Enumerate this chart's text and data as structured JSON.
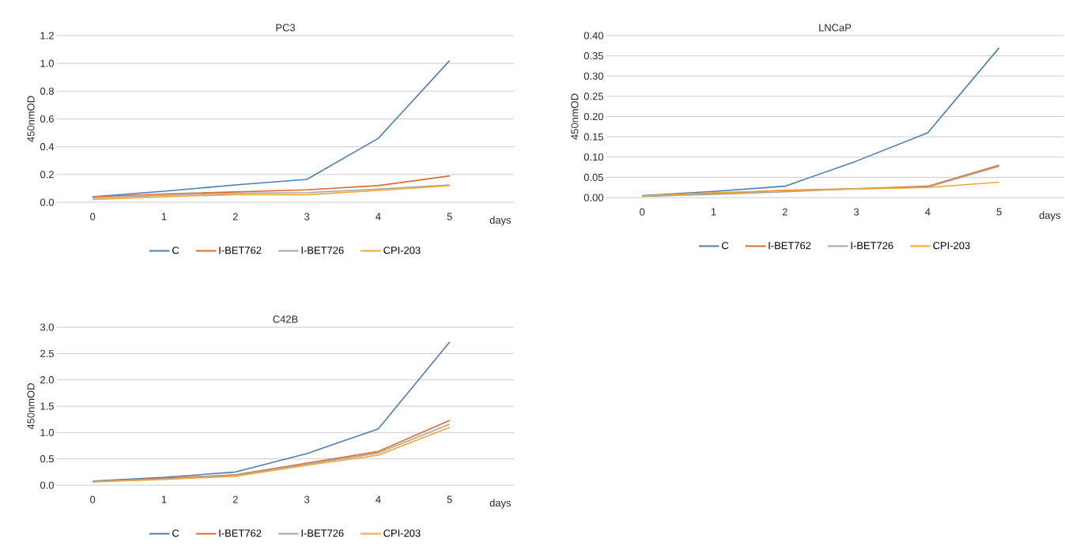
{
  "chart_data": [
    {
      "type": "line",
      "title": "PC3",
      "xlabel": "days",
      "ylabel": "450nmOD",
      "categories": [
        "0",
        "1",
        "2",
        "3",
        "4",
        "5"
      ],
      "series": [
        {
          "name": "C",
          "color": "#4a7fb5",
          "values": [
            0.04,
            0.08,
            0.125,
            0.165,
            0.46,
            1.02
          ]
        },
        {
          "name": "I-BET762",
          "color": "#e06a2c",
          "values": [
            0.04,
            0.06,
            0.075,
            0.09,
            0.12,
            0.19
          ]
        },
        {
          "name": "I-BET726",
          "color": "#a5a5a5",
          "values": [
            0.03,
            0.05,
            0.065,
            0.07,
            0.095,
            0.125
          ]
        },
        {
          "name": "CPI-203",
          "color": "#f0a830",
          "values": [
            0.02,
            0.04,
            0.055,
            0.055,
            0.085,
            0.12
          ]
        }
      ],
      "ylim": [
        0,
        1.2
      ],
      "yticks": [
        {
          "value": 0,
          "label": "0.0"
        },
        {
          "value": 0.2,
          "label": "0.2"
        },
        {
          "value": 0.4,
          "label": "0.4"
        },
        {
          "value": 0.6,
          "label": "0.6"
        },
        {
          "value": 0.8,
          "label": "0.8"
        },
        {
          "value": 1.0,
          "label": "1.0"
        },
        {
          "value": 1.2,
          "label": "1.2"
        }
      ],
      "grid": "y",
      "legend": "bottom"
    },
    {
      "type": "line",
      "title": "LNCaP",
      "xlabel": "days",
      "ylabel": "450nmOD",
      "categories": [
        "0",
        "1",
        "2",
        "3",
        "4",
        "5"
      ],
      "series": [
        {
          "name": "C",
          "color": "#4a7fb5",
          "values": [
            0.005,
            0.015,
            0.028,
            0.09,
            0.16,
            0.37
          ]
        },
        {
          "name": "I-BET762",
          "color": "#e06a2c",
          "values": [
            0.003,
            0.01,
            0.018,
            0.022,
            0.028,
            0.08
          ]
        },
        {
          "name": "I-BET726",
          "color": "#a5a5a5",
          "values": [
            0.003,
            0.008,
            0.014,
            0.022,
            0.026,
            0.077
          ]
        },
        {
          "name": "CPI-203",
          "color": "#f0a830",
          "values": [
            0.004,
            0.012,
            0.017,
            0.021,
            0.025,
            0.038
          ]
        }
      ],
      "ylim": [
        0,
        0.4
      ],
      "yticks": [
        {
          "value": 0,
          "label": "0.00"
        },
        {
          "value": 0.05,
          "label": "0.05"
        },
        {
          "value": 0.1,
          "label": "0.10"
        },
        {
          "value": 0.15,
          "label": "0.15"
        },
        {
          "value": 0.2,
          "label": "0.20"
        },
        {
          "value": 0.25,
          "label": "0.25"
        },
        {
          "value": 0.3,
          "label": "0.30"
        },
        {
          "value": 0.35,
          "label": "0.35"
        },
        {
          "value": 0.4,
          "label": "0.40"
        }
      ],
      "grid": "y",
      "legend": "bottom"
    },
    {
      "type": "line",
      "title": "C42B",
      "xlabel": "days",
      "ylabel": "450nmOD",
      "categories": [
        "0",
        "1",
        "2",
        "3",
        "4",
        "5"
      ],
      "series": [
        {
          "name": "C",
          "color": "#4a7fb5",
          "values": [
            0.08,
            0.15,
            0.25,
            0.6,
            1.07,
            2.72
          ]
        },
        {
          "name": "I-BET762",
          "color": "#e06a2c",
          "values": [
            0.07,
            0.13,
            0.2,
            0.42,
            0.64,
            1.23
          ]
        },
        {
          "name": "I-BET726",
          "color": "#a5a5a5",
          "values": [
            0.07,
            0.12,
            0.19,
            0.4,
            0.61,
            1.16
          ]
        },
        {
          "name": "CPI-203",
          "color": "#f0a830",
          "values": [
            0.06,
            0.11,
            0.17,
            0.38,
            0.57,
            1.1
          ]
        }
      ],
      "ylim": [
        0,
        3.0
      ],
      "yticks": [
        {
          "value": 0,
          "label": "0.0"
        },
        {
          "value": 0.5,
          "label": "0.5"
        },
        {
          "value": 1.0,
          "label": "1.0"
        },
        {
          "value": 1.5,
          "label": "1.5"
        },
        {
          "value": 2.0,
          "label": "2.0"
        },
        {
          "value": 2.5,
          "label": "2.5"
        },
        {
          "value": 3.0,
          "label": "3.0"
        }
      ],
      "grid": "y",
      "legend": "bottom"
    }
  ]
}
